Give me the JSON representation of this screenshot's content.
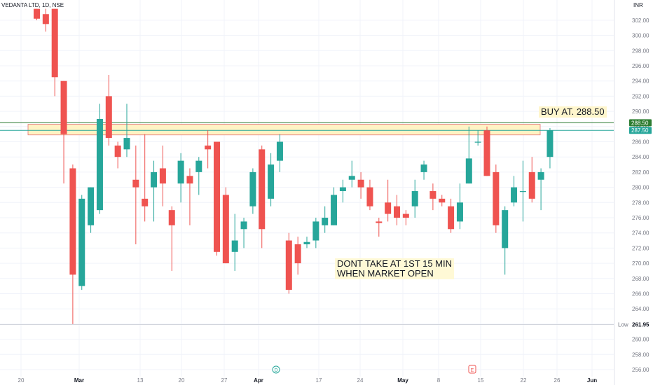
{
  "header": {
    "symbol_label": "VEDANTA LTD, 1D, NSE"
  },
  "price_axis": {
    "currency": "INR",
    "min_label": "Low"
  },
  "annotations": {
    "buy_note": "BUY AT. 288.50",
    "dont_note": "DONT TAKE AT 1ST 15 MIN\nWHEN MARKET OPEN",
    "marker_d": "D",
    "marker_e": "E"
  },
  "colors": {
    "up": "#26a69a",
    "down": "#ef5350",
    "buy_line": "#2e7d32",
    "zone_fill": "#fff3c4",
    "zone_border": "#e57373",
    "grid": "#f0f3fa"
  },
  "chart_data": {
    "type": "candlestick",
    "title": "VEDANTA LTD, 1D, NSE",
    "ylabel": "INR",
    "ylim": [
      255,
      303.5
    ],
    "y_ticks": [
      256,
      258,
      260,
      262,
      264,
      266,
      268,
      270,
      272,
      274,
      276,
      278,
      280,
      282,
      284,
      286,
      288,
      290,
      292,
      294,
      296,
      298,
      300,
      302
    ],
    "x_tick_labels": [
      "20",
      "Mar",
      "13",
      "20",
      "27",
      "Apr",
      "17",
      "24",
      "May",
      "8",
      "15",
      "22",
      "26",
      "Jun"
    ],
    "price_tags": [
      {
        "label": "288.50",
        "value": 288.5,
        "color": "#2e7d32"
      },
      {
        "label": "287.50",
        "value": 287.5,
        "color": "#26a69a"
      },
      {
        "label": "261.95",
        "value": 261.95,
        "color": "#e0e3eb",
        "prefix": "Low"
      }
    ],
    "horizontal_lines": [
      {
        "value": 288.5,
        "color": "#2e7d32"
      },
      {
        "value": 287.5,
        "color": "#26a69a"
      },
      {
        "value": 261.95,
        "color": "#d1d4dc"
      }
    ],
    "zone": {
      "from": 286.9,
      "to": 288.3
    },
    "candles": [
      {
        "o": 303.5,
        "h": 303.5,
        "l": 302.0,
        "c": 302.2
      },
      {
        "o": 302.8,
        "h": 303.5,
        "l": 300.5,
        "c": 301.5
      },
      {
        "o": 303.5,
        "h": 303.5,
        "l": 292.0,
        "c": 294.5
      },
      {
        "o": 294.0,
        "h": 294.0,
        "l": 280.5,
        "c": 287.0
      },
      {
        "o": 282.5,
        "h": 283.0,
        "l": 262.0,
        "c": 268.5
      },
      {
        "o": 267.0,
        "h": 279.0,
        "l": 266.5,
        "c": 278.5
      },
      {
        "o": 275.0,
        "h": 280.0,
        "l": 274.0,
        "c": 280.0
      },
      {
        "o": 277.0,
        "h": 291.0,
        "l": 276.5,
        "c": 289.0
      },
      {
        "o": 292.0,
        "h": 294.8,
        "l": 285.5,
        "c": 286.5
      },
      {
        "o": 285.5,
        "h": 286.0,
        "l": 282.5,
        "c": 284.0
      },
      {
        "o": 285.0,
        "h": 291.0,
        "l": 284.0,
        "c": 286.5
      },
      {
        "o": 281.0,
        "h": 285.5,
        "l": 272.5,
        "c": 280.0
      },
      {
        "o": 278.5,
        "h": 287.0,
        "l": 275.5,
        "c": 277.5
      },
      {
        "o": 280.0,
        "h": 283.5,
        "l": 275.5,
        "c": 282.0
      },
      {
        "o": 282.5,
        "h": 285.5,
        "l": 277.5,
        "c": 280.5
      },
      {
        "o": 277.0,
        "h": 277.5,
        "l": 269.0,
        "c": 275.0
      },
      {
        "o": 280.5,
        "h": 284.5,
        "l": 278.0,
        "c": 283.5
      },
      {
        "o": 281.5,
        "h": 282.5,
        "l": 275.0,
        "c": 280.5
      },
      {
        "o": 282.0,
        "h": 284.0,
        "l": 279.0,
        "c": 283.5
      },
      {
        "o": 285.5,
        "h": 287.5,
        "l": 282.5,
        "c": 285.0
      },
      {
        "o": 286.0,
        "h": 286.0,
        "l": 271.0,
        "c": 271.5
      },
      {
        "o": 279.0,
        "h": 280.0,
        "l": 270.0,
        "c": 270.0
      },
      {
        "o": 271.5,
        "h": 276.5,
        "l": 269.0,
        "c": 273.0
      },
      {
        "o": 274.5,
        "h": 276.0,
        "l": 272.0,
        "c": 275.5
      },
      {
        "o": 277.5,
        "h": 282.5,
        "l": 276.5,
        "c": 282.0
      },
      {
        "o": 285.0,
        "h": 285.5,
        "l": 272.0,
        "c": 274.5
      },
      {
        "o": 278.5,
        "h": 284.5,
        "l": 277.5,
        "c": 283.0
      },
      {
        "o": 283.5,
        "h": 287.0,
        "l": 282.0,
        "c": 286.0
      },
      {
        "o": 273.0,
        "h": 274.0,
        "l": 266.0,
        "c": 266.5
      },
      {
        "o": 272.5,
        "h": 273.5,
        "l": 268.5,
        "c": 270.0
      },
      {
        "o": 272.5,
        "h": 273.5,
        "l": 272.0,
        "c": 272.8
      },
      {
        "o": 273.0,
        "h": 276.0,
        "l": 272.0,
        "c": 275.5
      },
      {
        "o": 275.0,
        "h": 277.5,
        "l": 274.0,
        "c": 276.0
      },
      {
        "o": 275.0,
        "h": 280.0,
        "l": 275.0,
        "c": 279.0
      },
      {
        "o": 279.5,
        "h": 281.0,
        "l": 278.0,
        "c": 280.0
      },
      {
        "o": 281.0,
        "h": 283.5,
        "l": 280.0,
        "c": 281.5
      },
      {
        "o": 281.0,
        "h": 282.0,
        "l": 278.5,
        "c": 280.0
      },
      {
        "o": 280.0,
        "h": 281.0,
        "l": 277.0,
        "c": 277.5
      },
      {
        "o": 275.5,
        "h": 276.0,
        "l": 273.5,
        "c": 275.3
      },
      {
        "o": 278.0,
        "h": 281.0,
        "l": 275.5,
        "c": 276.5
      },
      {
        "o": 277.5,
        "h": 279.0,
        "l": 275.0,
        "c": 276.0
      },
      {
        "o": 276.5,
        "h": 277.0,
        "l": 275.0,
        "c": 276.0
      },
      {
        "o": 277.5,
        "h": 281.0,
        "l": 276.0,
        "c": 279.5
      },
      {
        "o": 282.0,
        "h": 283.5,
        "l": 281.0,
        "c": 283.0
      },
      {
        "o": 279.5,
        "h": 280.5,
        "l": 277.0,
        "c": 278.5
      },
      {
        "o": 278.5,
        "h": 279.0,
        "l": 277.5,
        "c": 278.0
      },
      {
        "o": 277.5,
        "h": 278.5,
        "l": 274.0,
        "c": 274.5
      },
      {
        "o": 275.5,
        "h": 280.5,
        "l": 274.5,
        "c": 278.0
      },
      {
        "o": 280.5,
        "h": 288.0,
        "l": 280.5,
        "c": 283.8
      },
      {
        "o": 286.0,
        "h": 287.5,
        "l": 285.5,
        "c": 286.0
      },
      {
        "o": 287.5,
        "h": 288.0,
        "l": 281.5,
        "c": 281.5
      },
      {
        "o": 282.0,
        "h": 283.0,
        "l": 274.0,
        "c": 275.0
      },
      {
        "o": 272.0,
        "h": 277.5,
        "l": 268.5,
        "c": 277.0
      },
      {
        "o": 278.0,
        "h": 281.5,
        "l": 277.5,
        "c": 280.0
      },
      {
        "o": 279.5,
        "h": 283.5,
        "l": 275.5,
        "c": 279.5
      },
      {
        "o": 282.0,
        "h": 284.0,
        "l": 278.0,
        "c": 278.5
      },
      {
        "o": 281.0,
        "h": 282.5,
        "l": 277.0,
        "c": 282.0
      },
      {
        "o": 284.0,
        "h": 287.8,
        "l": 282.5,
        "c": 287.5
      }
    ]
  }
}
